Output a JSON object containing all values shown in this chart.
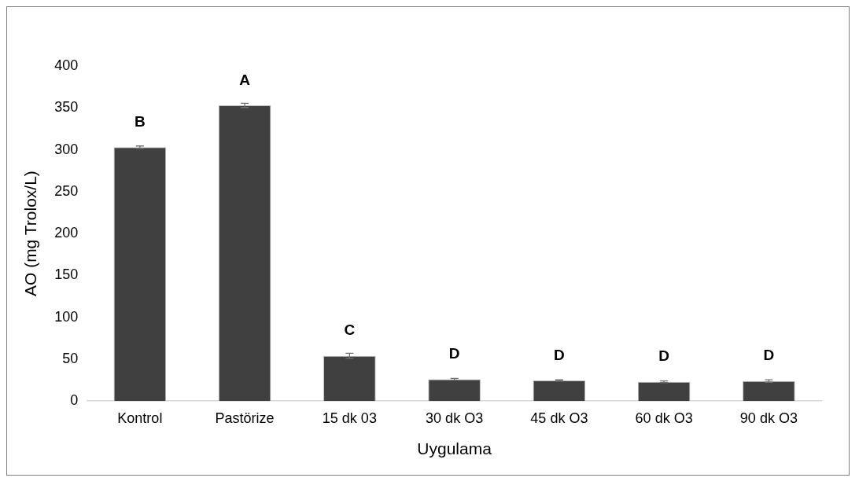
{
  "chart_data": {
    "type": "bar",
    "xlabel": "Uygulama",
    "ylabel": "AO (mg Trolox/L)",
    "categories": [
      "Kontrol",
      "Pastörize",
      "15 dk 03",
      "30 dk O3",
      "45 dk O3",
      "60 dk O3",
      "90 dk O3"
    ],
    "values": [
      303,
      353,
      54,
      26,
      24.5,
      23,
      24
    ],
    "errors": [
      1.5,
      2.5,
      3,
      1,
      0.8,
      1,
      1.5
    ],
    "color": "#404040",
    "ylim": [
      0,
      400
    ],
    "yticks": [
      0,
      50,
      100,
      150,
      200,
      250,
      300,
      350,
      400
    ],
    "grid": false,
    "legend": false,
    "annotations": [
      {
        "text": "B",
        "x": "Kontrol",
        "y": 303
      },
      {
        "text": "A",
        "x": "Pastörize",
        "y": 353
      },
      {
        "text": "C",
        "x": "15 dk 03",
        "y": 54
      },
      {
        "text": "D",
        "x": "30 dk O3",
        "y": 26
      },
      {
        "text": "D",
        "x": "45 dk O3",
        "y": 24.5
      },
      {
        "text": "D",
        "x": "60 dk O3",
        "y": 23
      },
      {
        "text": "D",
        "x": "90 dk O3",
        "y": 24
      }
    ]
  }
}
